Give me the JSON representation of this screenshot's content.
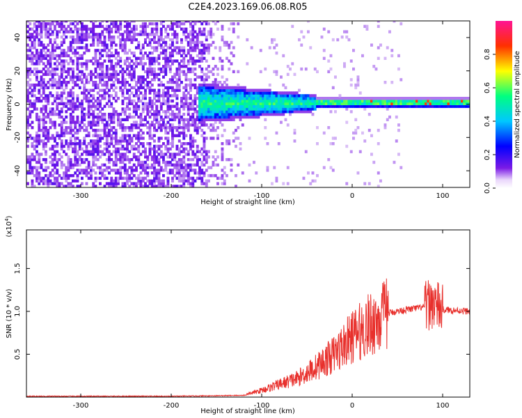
{
  "title": "C2E4.2023.169.06.08.R05",
  "chart_data": [
    {
      "type": "heatmap",
      "xlabel": "Height of straight line (km)",
      "ylabel": "Frequency (Hz)",
      "xlim": [
        -360,
        130
      ],
      "ylim": [
        -50,
        50
      ],
      "xticks": [
        -300,
        -200,
        -100,
        0,
        100
      ],
      "yticks": [
        -40,
        -20,
        0,
        20,
        40
      ],
      "colorbar": {
        "label": "Normalized spectral amplitude",
        "range": [
          0.0,
          1.0
        ],
        "ticks": [
          "0.0",
          "0.2",
          "0.4",
          "0.6",
          "0.8"
        ],
        "colormap": [
          "#f4ecfb",
          "#7b1be6",
          "#0000ff",
          "#00c8ff",
          "#00ff80",
          "#ffff00",
          "#ff3000",
          "#ff1493"
        ]
      },
      "regions": [
        {
          "description": "broadband noise",
          "x_range": [
            -360,
            -160
          ],
          "freq_range": [
            -50,
            50
          ],
          "amplitude": 0.12
        },
        {
          "description": "signal onset",
          "x_range": [
            -170,
            -40
          ],
          "freq_center": 0,
          "freq_halfwidth": [
            10,
            4
          ],
          "amplitude": 0.35
        },
        {
          "description": "narrow carrier",
          "x_range": [
            -40,
            130
          ],
          "freq_center": 0,
          "freq_halfwidth": [
            2,
            2
          ],
          "amplitude": 0.5
        }
      ]
    },
    {
      "type": "line",
      "xlabel": "Height of straight line (km)",
      "ylabel": "SNR (10 * v/v)",
      "y_scale_label": "(x10",
      "y_scale_exp": "4",
      "xlim": [
        -360,
        130
      ],
      "ylim": [
        0,
        1.95
      ],
      "xticks": [
        -300,
        -200,
        -100,
        0,
        100
      ],
      "yticks": [
        "0.5",
        "1.0",
        "1.5"
      ],
      "series_color": "#e8302c",
      "envelope": {
        "x": [
          -360,
          -200,
          -120,
          -100,
          -80,
          -60,
          -40,
          -20,
          0,
          20,
          40,
          60,
          80,
          90,
          95,
          100,
          130
        ],
        "y": [
          0.01,
          0.01,
          0.02,
          0.08,
          0.15,
          0.22,
          0.35,
          0.5,
          0.7,
          0.85,
          0.98,
          1.02,
          1.05,
          1.1,
          1.05,
          1.02,
          1.0
        ]
      }
    }
  ]
}
